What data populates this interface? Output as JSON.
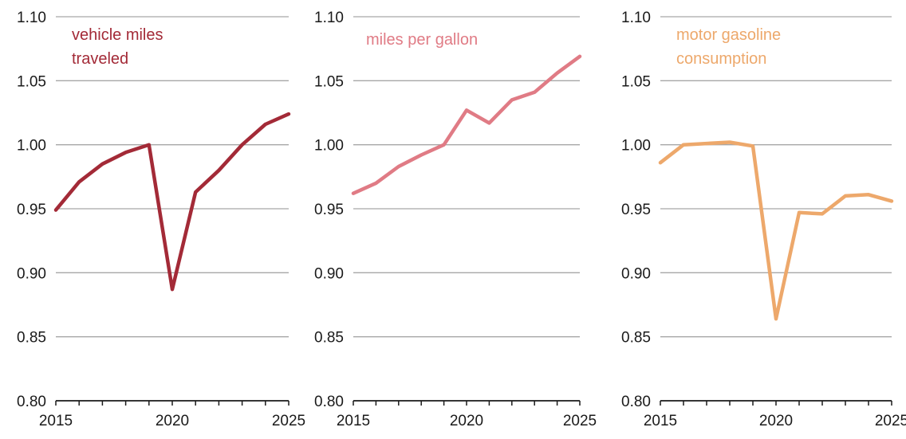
{
  "chart_data": [
    {
      "type": "line",
      "series": [
        {
          "name": "vehicle miles traveled",
          "color": "#a32a37",
          "x": [
            2015,
            2016,
            2017,
            2018,
            2019,
            2020,
            2021,
            2022,
            2023,
            2024,
            2025
          ],
          "values": [
            0.949,
            0.971,
            0.985,
            0.994,
            1.0,
            0.887,
            0.963,
            0.98,
            1.0,
            1.016,
            1.024
          ]
        }
      ],
      "xlim": [
        2015,
        2025
      ],
      "ylim": [
        0.8,
        1.1
      ],
      "yticks": [
        "0.80",
        "0.85",
        "0.90",
        "0.95",
        "1.00",
        "1.05",
        "1.10"
      ],
      "xticks": [
        "2015",
        "2020",
        "2025"
      ],
      "grid": "horizontal"
    },
    {
      "type": "line",
      "series": [
        {
          "name": "miles per gallon",
          "color": "#e07b85",
          "x": [
            2015,
            2016,
            2017,
            2018,
            2019,
            2020,
            2021,
            2022,
            2023,
            2024,
            2025
          ],
          "values": [
            0.962,
            0.97,
            0.983,
            0.992,
            1.0,
            1.027,
            1.017,
            1.035,
            1.041,
            1.056,
            1.069
          ]
        }
      ],
      "xlim": [
        2015,
        2025
      ],
      "ylim": [
        0.8,
        1.1
      ],
      "yticks": [
        "0.80",
        "0.85",
        "0.90",
        "0.95",
        "1.00",
        "1.05",
        "1.10"
      ],
      "xticks": [
        "2015",
        "2020",
        "2025"
      ],
      "grid": "horizontal"
    },
    {
      "type": "line",
      "series": [
        {
          "name": "motor gasoline consumption",
          "color": "#eda86b",
          "x": [
            2015,
            2016,
            2017,
            2018,
            2019,
            2020,
            2021,
            2022,
            2023,
            2024,
            2025
          ],
          "values": [
            0.986,
            1.0,
            1.001,
            1.002,
            0.999,
            0.864,
            0.947,
            0.946,
            0.96,
            0.961,
            0.956
          ]
        }
      ],
      "xlim": [
        2015,
        2025
      ],
      "ylim": [
        0.8,
        1.1
      ],
      "yticks": [
        "0.80",
        "0.85",
        "0.90",
        "0.95",
        "1.00",
        "1.05",
        "1.10"
      ],
      "xticks": [
        "2015",
        "2020",
        "2025"
      ],
      "grid": "horizontal"
    }
  ],
  "panels": [
    {
      "label_lines": [
        "vehicle miles",
        "traveled"
      ]
    },
    {
      "label_lines": [
        "miles per gallon"
      ]
    },
    {
      "label_lines": [
        "motor gasoline",
        "consumption"
      ]
    }
  ],
  "colors": {
    "grid": "#a6a6a6",
    "axis": "#1a1a1a",
    "tick_text": "#1a1a1a"
  }
}
